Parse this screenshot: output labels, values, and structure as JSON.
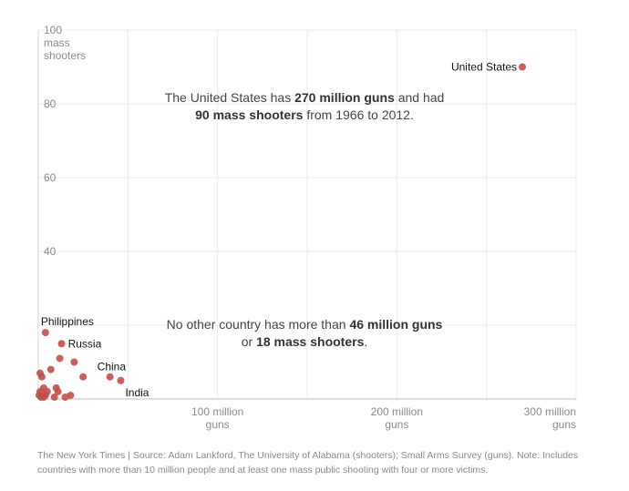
{
  "chart_data": {
    "type": "scatter",
    "xlabel": "guns",
    "ylabel": "mass shooters",
    "xlim": [
      0,
      300
    ],
    "ylim": [
      0,
      100
    ],
    "x_unit": "million guns",
    "x_ticks": [
      {
        "value": 100,
        "line1": "100 million",
        "line2": "guns"
      },
      {
        "value": 200,
        "line1": "200 million",
        "line2": "guns"
      },
      {
        "value": 300,
        "line1": "300 million",
        "line2": "guns"
      }
    ],
    "y_ticks": [
      {
        "value": 100,
        "line1": "100",
        "line2": "mass",
        "line3": "shooters"
      },
      {
        "value": 80,
        "line1": "80"
      },
      {
        "value": 60,
        "line1": "60"
      },
      {
        "value": 40,
        "line1": "40"
      }
    ],
    "grid": true,
    "point_color": "#c0504d",
    "points": [
      {
        "label": "United States",
        "x": 270,
        "y": 90
      },
      {
        "label": "Philippines",
        "x": 4,
        "y": 18
      },
      {
        "label": "Russia",
        "x": 13,
        "y": 15
      },
      {
        "label": "China",
        "x": 40,
        "y": 6
      },
      {
        "label": "India",
        "x": 46,
        "y": 5
      },
      {
        "x": 12,
        "y": 11
      },
      {
        "x": 20,
        "y": 10
      },
      {
        "x": 7,
        "y": 8
      },
      {
        "x": 25,
        "y": 6
      },
      {
        "x": 1,
        "y": 7
      },
      {
        "x": 2,
        "y": 6
      },
      {
        "x": 3,
        "y": 3
      },
      {
        "x": 10,
        "y": 3
      },
      {
        "x": 1,
        "y": 2
      },
      {
        "x": 5,
        "y": 2
      },
      {
        "x": 11,
        "y": 2
      },
      {
        "x": 0.5,
        "y": 1
      },
      {
        "x": 4,
        "y": 1
      },
      {
        "x": 18,
        "y": 1
      },
      {
        "x": 1.5,
        "y": 0.5
      },
      {
        "x": 3,
        "y": 0.5
      },
      {
        "x": 9,
        "y": 0.5
      },
      {
        "x": 15,
        "y": 0.5
      }
    ],
    "label_offsets": {
      "United States": "left",
      "Philippines": "above",
      "Russia": "right",
      "China": "upper-left",
      "India": "lower-right"
    }
  },
  "annotations": {
    "top": {
      "pre": "The United States has ",
      "bold1": "270 million guns",
      "mid": " and had",
      "bold2": "90 mass shooters",
      "post": " from 1966 to 2012."
    },
    "bottom": {
      "pre": "No other country has more than ",
      "bold1": "46 million guns",
      "mid": "or ",
      "bold2": "18 mass shooters",
      "post": "."
    }
  },
  "footer": {
    "line1": "The New York Times  |  Source: Adam Lankford, The University of Alabama (shooters); Small Arms Survey (guns). Note: Includes",
    "line2": "countries with more than 10 million people and at least one mass public shooting with four or more victims."
  }
}
